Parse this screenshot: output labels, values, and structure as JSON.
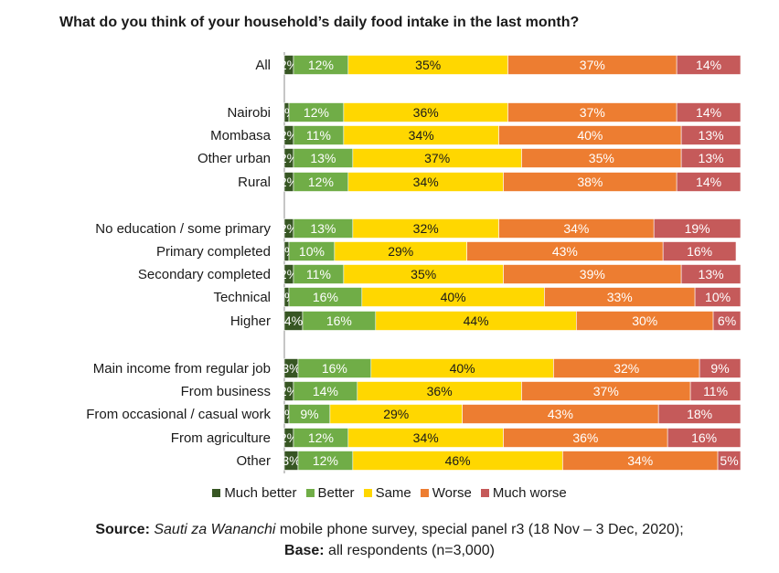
{
  "chart_data": {
    "type": "bar",
    "orientation": "horizontal",
    "stacked": true,
    "normalized": true,
    "title": "What do you think of your household’s daily food intake in the last month?",
    "categories": [
      "All",
      "Nairobi",
      "Mombasa",
      "Other urban",
      "Rural",
      "No education / some primary",
      "Primary completed",
      "Secondary completed",
      "Technical",
      "Higher",
      "Main income from regular job",
      "From business",
      "From occasional / casual work",
      "From agriculture",
      "Other"
    ],
    "series": [
      {
        "name": "Much better",
        "color": "#375623",
        "values": [
          2,
          1,
          2,
          2,
          2,
          2,
          1,
          2,
          1,
          4,
          3,
          2,
          1,
          2,
          3
        ]
      },
      {
        "name": "Better",
        "color": "#70AD47",
        "values": [
          12,
          12,
          11,
          13,
          12,
          13,
          10,
          11,
          16,
          16,
          16,
          14,
          9,
          12,
          12
        ]
      },
      {
        "name": "Same",
        "color": "#FFD700",
        "values": [
          35,
          36,
          34,
          37,
          34,
          32,
          29,
          35,
          40,
          44,
          40,
          36,
          29,
          34,
          46
        ]
      },
      {
        "name": "Worse",
        "color": "#ED7D31",
        "values": [
          37,
          37,
          40,
          35,
          38,
          34,
          43,
          39,
          33,
          30,
          32,
          37,
          43,
          36,
          34
        ]
      },
      {
        "name": "Much worse",
        "color": "#C55A5A",
        "values": [
          14,
          14,
          13,
          13,
          14,
          19,
          16,
          13,
          10,
          6,
          9,
          11,
          18,
          16,
          5
        ]
      }
    ],
    "xlim": [
      0,
      100
    ],
    "legend_position": "bottom"
  },
  "source": {
    "label": "Source:",
    "name": "Sauti za Wananchi",
    "text": " mobile phone survey, special panel r3 (18 Nov – 3 Dec, 2020);",
    "base_label": "Base:",
    "base_text": " all respondents (n=3,000)"
  }
}
